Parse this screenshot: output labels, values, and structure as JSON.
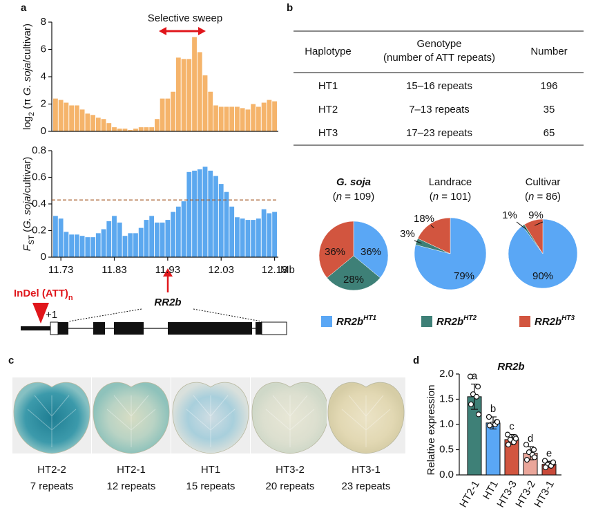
{
  "panel_labels": [
    "a",
    "b",
    "c",
    "d"
  ],
  "chart_data": [
    {
      "type": "bar",
      "annotation": "Selective sweep",
      "ylabel_parts": [
        "log",
        "2",
        " (π ",
        "G. soja",
        "/cultivar)"
      ],
      "x": [
        11.72,
        11.73,
        11.74,
        11.75,
        11.76,
        11.77,
        11.78,
        11.79,
        11.8,
        11.81,
        11.82,
        11.83,
        11.84,
        11.85,
        11.86,
        11.87,
        11.88,
        11.89,
        11.9,
        11.91,
        11.92,
        11.93,
        11.94,
        11.95,
        11.96,
        11.97,
        11.98,
        11.99,
        12.0,
        12.01,
        12.02,
        12.03,
        12.04,
        12.05,
        12.06,
        12.07,
        12.08,
        12.09,
        12.1,
        12.11,
        12.12,
        12.13
      ],
      "values": [
        2.4,
        2.3,
        2.1,
        1.9,
        1.9,
        1.6,
        1.3,
        1.2,
        1.0,
        0.9,
        0.6,
        0.3,
        0.2,
        0.2,
        0.1,
        0.2,
        0.3,
        0.3,
        0.3,
        0.9,
        2.4,
        2.4,
        2.9,
        5.4,
        5.3,
        5.3,
        6.9,
        5.8,
        4.1,
        2.9,
        1.9,
        1.8,
        1.8,
        1.8,
        1.8,
        1.7,
        1.6,
        2.0,
        1.8,
        2.1,
        2.3,
        2.2
      ],
      "color": "#f5b46b",
      "xlim": [
        11.713,
        12.137
      ],
      "ylim": [
        0,
        8
      ],
      "yticks": [
        0,
        2,
        4,
        6,
        8
      ]
    },
    {
      "type": "bar",
      "ylabel_parts": [
        "F",
        "ST",
        " (",
        "G. soja",
        "/cultivar)"
      ],
      "x": [
        11.72,
        11.73,
        11.74,
        11.75,
        11.76,
        11.77,
        11.78,
        11.79,
        11.8,
        11.81,
        11.82,
        11.83,
        11.84,
        11.85,
        11.86,
        11.87,
        11.88,
        11.89,
        11.9,
        11.91,
        11.92,
        11.93,
        11.94,
        11.95,
        11.96,
        11.97,
        11.98,
        11.99,
        12.0,
        12.01,
        12.02,
        12.03,
        12.04,
        12.05,
        12.06,
        12.07,
        12.08,
        12.09,
        12.1,
        12.11,
        12.12,
        12.13
      ],
      "values": [
        0.31,
        0.29,
        0.19,
        0.17,
        0.17,
        0.16,
        0.15,
        0.15,
        0.18,
        0.21,
        0.27,
        0.31,
        0.26,
        0.16,
        0.18,
        0.18,
        0.22,
        0.28,
        0.31,
        0.26,
        0.26,
        0.28,
        0.34,
        0.38,
        0.42,
        0.64,
        0.65,
        0.66,
        0.68,
        0.65,
        0.61,
        0.55,
        0.49,
        0.38,
        0.3,
        0.29,
        0.28,
        0.28,
        0.29,
        0.36,
        0.33,
        0.34
      ],
      "color": "#5ca8ef",
      "xlim": [
        11.713,
        12.137
      ],
      "ylim": [
        0,
        0.8
      ],
      "yticks": [
        0,
        0.2,
        0.4,
        0.6,
        0.8
      ],
      "xticks": [
        11.73,
        11.83,
        11.93,
        12.03,
        12.13
      ],
      "xlabel": "Mb",
      "threshold": 0.43
    },
    {
      "type": "pie",
      "title": "G. soja",
      "title_italic": true,
      "subtitle_parts": [
        "(",
        "n",
        " = 109)"
      ],
      "values": [
        36,
        28,
        36
      ],
      "value_labels": [
        "36%",
        "28%",
        "36%"
      ],
      "colors": [
        "#5aa7f5",
        "#3e8077",
        "#d2553f"
      ]
    },
    {
      "type": "pie",
      "title": "Landrace",
      "title_italic": false,
      "subtitle_parts": [
        "(",
        "n",
        " = 101)"
      ],
      "values": [
        79,
        3,
        18
      ],
      "value_labels": [
        "79%",
        "3%",
        "18%"
      ],
      "colors": [
        "#5aa7f5",
        "#3e8077",
        "#d2553f"
      ]
    },
    {
      "type": "pie",
      "title": "Cultivar",
      "title_italic": false,
      "subtitle_parts": [
        "(",
        "n",
        " = 86)"
      ],
      "values": [
        90,
        1,
        9
      ],
      "value_labels": [
        "90%",
        "1%",
        "9%"
      ],
      "colors": [
        "#5aa7f5",
        "#3e8077",
        "#d2553f"
      ]
    },
    {
      "type": "bar",
      "title": "RR2b",
      "ylabel": "Relative expression",
      "categories": [
        "HT2-1",
        "HT1",
        "HT3-3",
        "HT3-2",
        "HT3-1"
      ],
      "values": [
        1.55,
        1.03,
        0.7,
        0.43,
        0.21
      ],
      "errors": [
        0.25,
        0.12,
        0.1,
        0.13,
        0.06
      ],
      "letters": [
        "a",
        "b",
        "c",
        "d",
        "e"
      ],
      "points": [
        [
          1.95,
          1.75,
          1.6,
          1.55,
          1.4,
          1.2
        ],
        [
          1.15,
          1.05,
          1.0,
          1.0,
          0.98,
          1.05
        ],
        [
          0.8,
          0.75,
          0.7,
          0.65,
          0.6,
          0.72
        ],
        [
          0.6,
          0.5,
          0.45,
          0.4,
          0.3,
          0.35
        ],
        [
          0.28,
          0.22,
          0.2,
          0.18,
          0.15,
          0.25
        ]
      ],
      "colors": [
        "#3e8077",
        "#5aa7f5",
        "#d2553f",
        "#eaa69a",
        "#c84a3a"
      ],
      "ylim": [
        0,
        2.0
      ],
      "yticks": [
        {
          "value": 0,
          "label": "0.0"
        },
        0.5,
        {
          "value": 1,
          "label": "1.0"
        },
        1.5,
        {
          "value": 2,
          "label": "2.0"
        }
      ]
    }
  ],
  "pie_legend": [
    {
      "name": "RR2b",
      "sup": "HT1",
      "color": "#5aa7f5"
    },
    {
      "name": "RR2b",
      "sup": "HT2",
      "color": "#3e8077"
    },
    {
      "name": "RR2b",
      "sup": "HT3",
      "color": "#d2553f"
    }
  ],
  "gene_model": {
    "indel_parts": [
      "InDel (ATT)",
      "n"
    ],
    "tss": "+1",
    "gene": "RR2b"
  },
  "table": {
    "header_lines": [
      [
        "Haplotype"
      ],
      [
        "Genotype",
        "(number of ATT repeats)"
      ],
      [
        "Number"
      ]
    ],
    "rows": [
      [
        "HT1",
        "15–16 repeats",
        196
      ],
      [
        "HT2",
        "7–13 repeats",
        35
      ],
      [
        "HT3",
        "17–23 repeats",
        65
      ]
    ]
  },
  "leaves": [
    {
      "label": "HT2-2",
      "repeats": "7 repeats"
    },
    {
      "label": "HT2-1",
      "repeats": "12 repeats"
    },
    {
      "label": "HT1",
      "repeats": "15 repeats"
    },
    {
      "label": "HT3-2",
      "repeats": "20 repeats"
    },
    {
      "label": "HT3-1",
      "repeats": "23 repeats"
    }
  ]
}
